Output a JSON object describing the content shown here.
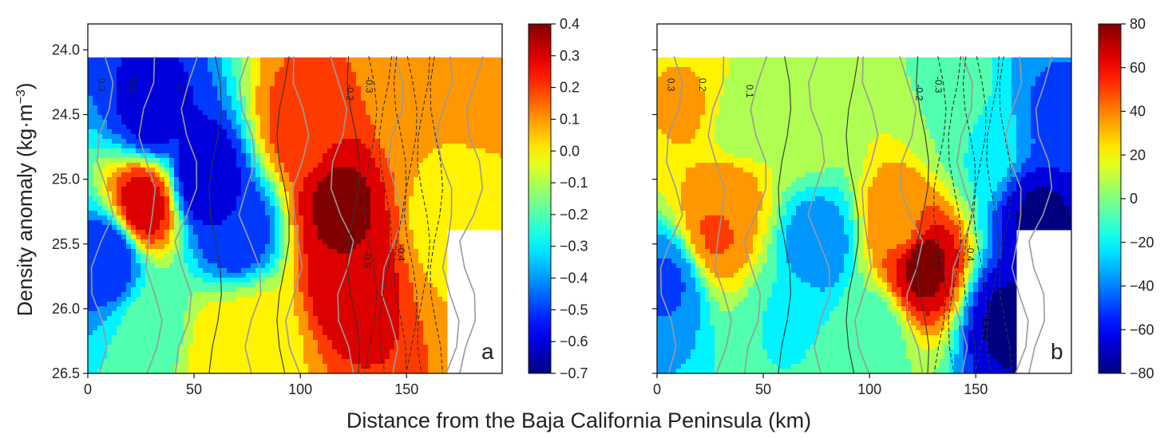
{
  "figure": {
    "xlabel": "Distance from the Baja California Peninsula (km)",
    "ylabel": "Density anomaly (kg·m",
    "ylabel_sup": "−3",
    "ylabel_close": ")"
  },
  "chart_data": [
    {
      "type": "heatmap",
      "panel_label": "a",
      "xlim": [
        0,
        195
      ],
      "ylim": [
        26.5,
        23.8
      ],
      "y_inverted": true,
      "xticks": [
        "0",
        "50",
        "100",
        "150"
      ],
      "yticks": [
        "24.0",
        "24.5",
        "25.0",
        "25.5",
        "26.0",
        "26.5"
      ],
      "colorbar": {
        "min": -0.7,
        "max": 0.4,
        "ticks": [
          "0.4",
          "0.3",
          "0.2",
          "0.1",
          "0.0",
          "−0.1",
          "−0.2",
          "−0.3",
          "−0.4",
          "−0.5",
          "−0.6",
          "−0.7"
        ]
      },
      "contour_labels": [
        "0.3",
        "0.2",
        "0.1",
        "-0.3",
        "-0.2",
        "-0.4",
        "-0.5"
      ],
      "data_extent": {
        "x_start": 0,
        "x_end": 195,
        "top": 24.05,
        "right_bottom": 25.4
      },
      "features": [
        {
          "x": 26,
          "y": 25.2,
          "value": 0.32
        },
        {
          "x": 118,
          "y": 25.2,
          "value": 0.38
        },
        {
          "x": 122,
          "y": 25.75,
          "value": 0.35
        },
        {
          "x": 100,
          "y": 24.6,
          "value": 0.2
        },
        {
          "x": 30,
          "y": 24.5,
          "value": -0.6
        },
        {
          "x": 55,
          "y": 25.0,
          "value": -0.65
        },
        {
          "x": 70,
          "y": 25.4,
          "value": -0.55
        },
        {
          "x": 10,
          "y": 25.6,
          "value": -0.55
        },
        {
          "x": 80,
          "y": 26.2,
          "value": 0.0
        },
        {
          "x": 170,
          "y": 25.3,
          "value": 0.0
        },
        {
          "x": 160,
          "y": 24.5,
          "value": 0.05
        },
        {
          "x": 65,
          "y": 26.3,
          "value": 0.05
        },
        {
          "x": 30,
          "y": 26.15,
          "value": -0.2
        },
        {
          "x": 175,
          "y": 24.0,
          "value": 0.15
        },
        {
          "x": 180,
          "y": 25.0,
          "value": 0.05
        }
      ]
    },
    {
      "type": "heatmap",
      "panel_label": "b",
      "xlim": [
        0,
        195
      ],
      "ylim": [
        26.5,
        23.8
      ],
      "y_inverted": true,
      "xticks": [
        "0",
        "50",
        "100",
        "150"
      ],
      "yticks": [],
      "colorbar": {
        "min": -80,
        "max": 80,
        "ticks": [
          "80",
          "60",
          "40",
          "20",
          "0",
          "−20",
          "−40",
          "−60",
          "−80"
        ]
      },
      "contour_labels": [
        "0.3",
        "0.2",
        "0.1",
        "-0.3",
        "-0.2",
        "-0.4",
        "-0.5"
      ],
      "data_extent": {
        "x_start": 0,
        "x_end": 195,
        "top": 24.05,
        "right_bottom": 25.4
      },
      "features": [
        {
          "x": 28,
          "y": 25.4,
          "value": 45
        },
        {
          "x": 35,
          "y": 25.1,
          "value": 35
        },
        {
          "x": 125,
          "y": 25.65,
          "value": 78
        },
        {
          "x": 115,
          "y": 25.35,
          "value": 40
        },
        {
          "x": 14,
          "y": 24.45,
          "value": 30
        },
        {
          "x": 180,
          "y": 25.3,
          "value": -75
        },
        {
          "x": 165,
          "y": 26.1,
          "value": -75
        },
        {
          "x": 185,
          "y": 24.5,
          "value": -45
        },
        {
          "x": 75,
          "y": 25.5,
          "value": -40
        },
        {
          "x": 5,
          "y": 25.8,
          "value": -45
        },
        {
          "x": 70,
          "y": 24.6,
          "value": 5
        },
        {
          "x": 140,
          "y": 24.5,
          "value": 0
        },
        {
          "x": 60,
          "y": 26.1,
          "value": -15
        },
        {
          "x": 100,
          "y": 26.2,
          "value": -10
        },
        {
          "x": 155,
          "y": 24.7,
          "value": -20
        },
        {
          "x": 40,
          "y": 24.6,
          "value": 5
        }
      ]
    }
  ]
}
